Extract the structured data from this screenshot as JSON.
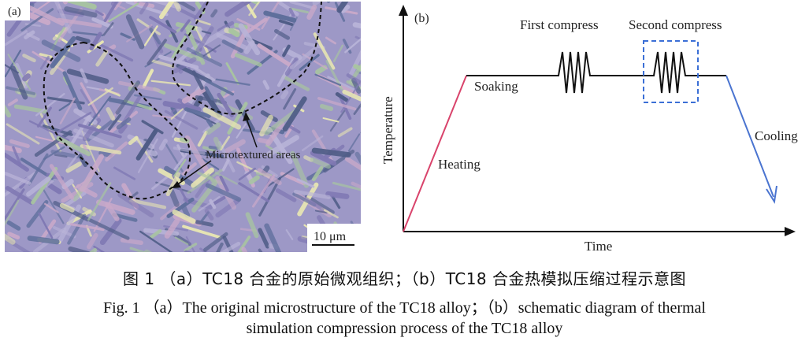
{
  "panel_a": {
    "label": "(a)",
    "annotation": "Microtextured areas",
    "scale_bar": "10 μm",
    "palette": [
      "#b9b4d8",
      "#7f78b3",
      "#5f6f9c",
      "#a8c4a0",
      "#e8e6b2",
      "#c9a9c9",
      "#4f5c86"
    ]
  },
  "panel_b": {
    "label": "(b)",
    "y_axis_label": "Temperature",
    "x_axis_label": "Time",
    "stage_heating": "Heating",
    "stage_soaking": "Soaking",
    "stage_first": "First compress",
    "stage_second": "Second compress",
    "stage_cooling": "Cooling",
    "colors": {
      "heating": "#d9436b",
      "cooling": "#4a74d0",
      "highlight_box": "#3b6fd6",
      "line": "#111111"
    }
  },
  "caption": {
    "zh": "图 1  （a）TC18 合金的原始微观组织；（b）TC18 合金热模拟压缩过程示意图",
    "en_line1": "Fig. 1  （a）The original microstructure of the TC18 alloy；（b）schematic diagram of thermal",
    "en_line2": "simulation compression process of the TC18 alloy"
  }
}
